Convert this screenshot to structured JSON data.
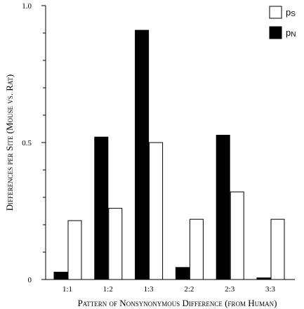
{
  "chart_data": {
    "type": "bar",
    "categories": [
      "1:1",
      "1:2",
      "1:3",
      "2:2",
      "2:3",
      "3:3"
    ],
    "series": [
      {
        "name": "pN",
        "color": "#000000",
        "values": [
          0.027,
          0.52,
          0.91,
          0.044,
          0.527,
          0.006
        ]
      },
      {
        "name": "pS",
        "color": "#ffffff",
        "values": [
          0.215,
          0.26,
          0.5,
          0.22,
          0.32,
          0.22
        ]
      }
    ],
    "xlabel": "Pattern of Nonsynonymous Difference (from Human)",
    "ylabel": "Differences per Site (Mouse vs. Rat)",
    "ylim": [
      0,
      1.0
    ],
    "yticks": [
      0,
      0.5,
      1.0
    ],
    "ytick_labels": [
      "0",
      "0.5",
      "1.0"
    ],
    "yminor_ticks": [
      0.1,
      0.2,
      0.3,
      0.4,
      0.6,
      0.7,
      0.8,
      0.9
    ],
    "legend_position": "top-right",
    "grid": false
  }
}
